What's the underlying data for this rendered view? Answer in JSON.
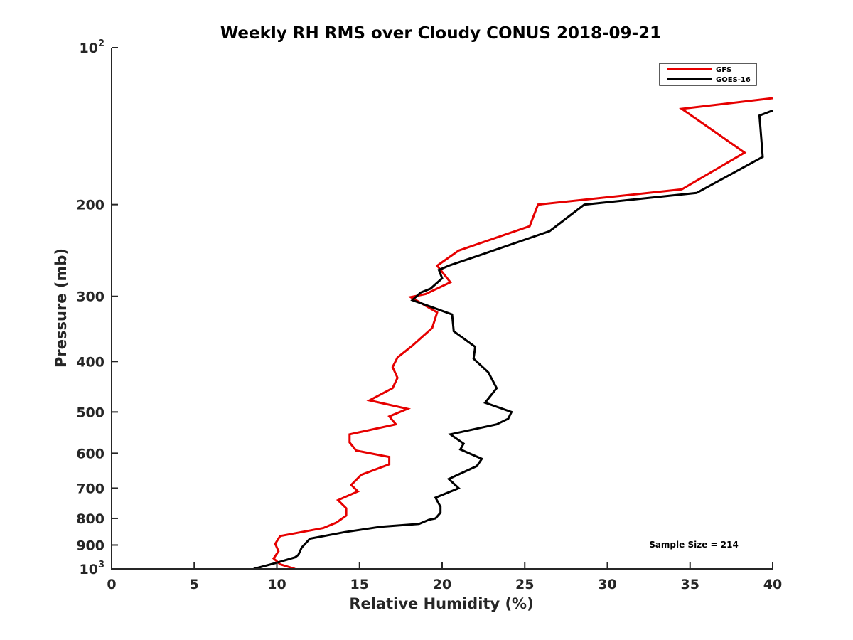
{
  "chart_data": {
    "type": "line",
    "title": "Weekly RH RMS over Cloudy CONUS 2018-09-21",
    "xlabel": "Relative Humidity (%)",
    "ylabel": "Pressure (mb)",
    "xlim": [
      0,
      40
    ],
    "ylim": [
      100,
      1000
    ],
    "y_scale": "log",
    "y_reversed": true,
    "grid": false,
    "legend_position": "top-right",
    "x_ticks": [
      "0",
      "5",
      "10",
      "15",
      "20",
      "25",
      "30",
      "35",
      "40"
    ],
    "y_ticks": [
      {
        "value": 100,
        "base": "10",
        "exp": "2"
      },
      {
        "value": 200,
        "label": "200"
      },
      {
        "value": 300,
        "label": "300"
      },
      {
        "value": 400,
        "label": "400"
      },
      {
        "value": 500,
        "label": "500"
      },
      {
        "value": 600,
        "label": "600"
      },
      {
        "value": 700,
        "label": "700"
      },
      {
        "value": 800,
        "label": "800"
      },
      {
        "value": 900,
        "label": "900"
      },
      {
        "value": 1000,
        "base": "10",
        "exp": "3"
      }
    ],
    "annotation": "Sample Size = 214",
    "series": [
      {
        "name": "GFS",
        "color": "#e60000",
        "points": [
          [
            40.0,
            125
          ],
          [
            34.5,
            131
          ],
          [
            38.3,
            159
          ],
          [
            34.5,
            187
          ],
          [
            25.8,
            200
          ],
          [
            25.3,
            220
          ],
          [
            21.0,
            245
          ],
          [
            19.7,
            262
          ],
          [
            20.5,
            282
          ],
          [
            19.0,
            297
          ],
          [
            18.1,
            301
          ],
          [
            19.7,
            322
          ],
          [
            19.4,
            345
          ],
          [
            18.2,
            373
          ],
          [
            17.3,
            393
          ],
          [
            17.0,
            410
          ],
          [
            17.3,
            430
          ],
          [
            17.0,
            450
          ],
          [
            15.6,
            475
          ],
          [
            17.9,
            493
          ],
          [
            16.8,
            510
          ],
          [
            17.2,
            528
          ],
          [
            14.4,
            552
          ],
          [
            14.4,
            572
          ],
          [
            14.8,
            593
          ],
          [
            16.8,
            610
          ],
          [
            16.8,
            630
          ],
          [
            15.1,
            660
          ],
          [
            14.5,
            690
          ],
          [
            14.9,
            710
          ],
          [
            13.7,
            738
          ],
          [
            14.2,
            765
          ],
          [
            14.2,
            790
          ],
          [
            13.6,
            815
          ],
          [
            12.8,
            835
          ],
          [
            10.2,
            865
          ],
          [
            9.9,
            895
          ],
          [
            10.1,
            925
          ],
          [
            9.8,
            955
          ],
          [
            10.2,
            980
          ],
          [
            11.1,
            1000
          ]
        ]
      },
      {
        "name": "GOES-16",
        "color": "#000000",
        "points": [
          [
            40.0,
            132
          ],
          [
            39.2,
            135
          ],
          [
            39.4,
            162
          ],
          [
            35.4,
            190
          ],
          [
            28.6,
            200
          ],
          [
            26.5,
            225
          ],
          [
            22.3,
            250
          ],
          [
            20.4,
            262
          ],
          [
            19.8,
            267
          ],
          [
            20.0,
            277
          ],
          [
            19.3,
            290
          ],
          [
            18.7,
            295
          ],
          [
            18.2,
            305
          ],
          [
            20.6,
            325
          ],
          [
            20.7,
            350
          ],
          [
            22.0,
            375
          ],
          [
            21.9,
            395
          ],
          [
            22.8,
            420
          ],
          [
            23.3,
            450
          ],
          [
            22.6,
            480
          ],
          [
            24.2,
            500
          ],
          [
            24.0,
            515
          ],
          [
            23.3,
            528
          ],
          [
            20.5,
            552
          ],
          [
            21.3,
            575
          ],
          [
            21.1,
            590
          ],
          [
            22.4,
            615
          ],
          [
            22.1,
            635
          ],
          [
            20.4,
            672
          ],
          [
            21.0,
            700
          ],
          [
            19.6,
            730
          ],
          [
            19.9,
            760
          ],
          [
            19.9,
            780
          ],
          [
            19.6,
            800
          ],
          [
            19.2,
            805
          ],
          [
            18.6,
            820
          ],
          [
            16.3,
            830
          ],
          [
            14.1,
            850
          ],
          [
            12.0,
            875
          ],
          [
            11.5,
            910
          ],
          [
            11.3,
            940
          ],
          [
            11.1,
            950
          ],
          [
            9.9,
            975
          ],
          [
            8.6,
            1000
          ]
        ]
      }
    ]
  }
}
